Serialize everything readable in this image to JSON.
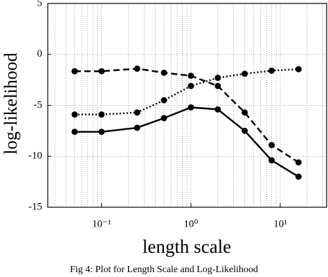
{
  "chart_data": {
    "type": "line",
    "xlabel": "length scale",
    "ylabel": "log-likelihood",
    "caption": "Fig 4: Plot for Length Scale and Log-Likelihood",
    "xscale": "log",
    "x": [
      0.05,
      0.1,
      0.25,
      0.5,
      1,
      2,
      4,
      8,
      16
    ],
    "series": [
      {
        "color": "#000000",
        "linestyle": "solid",
        "values": [
          -7.6,
          -7.6,
          -7.2,
          -6.25,
          -5.2,
          -5.4,
          -7.5,
          -10.4,
          -12.0
        ]
      },
      {
        "color": "#000000",
        "linestyle": "dashed",
        "values": [
          -1.65,
          -1.65,
          -1.4,
          -1.8,
          -2.1,
          -3.1,
          -5.7,
          -8.9,
          -10.6
        ]
      },
      {
        "color": "#000000",
        "linestyle": "dotted",
        "values": [
          -5.9,
          -5.9,
          -5.7,
          -4.5,
          -3.1,
          -2.3,
          -1.9,
          -1.6,
          -1.45
        ]
      }
    ],
    "xlim": [
      0.025,
      33
    ],
    "xticks": [
      {
        "value": 0.1,
        "label": "10⁻¹"
      },
      {
        "value": 1,
        "label": "10⁰"
      },
      {
        "value": 10,
        "label": "10¹"
      }
    ],
    "ylim": [
      -15,
      5
    ],
    "yticks": [
      -15,
      -10,
      -5,
      0,
      5
    ],
    "grid": true,
    "minor_grid": true
  }
}
